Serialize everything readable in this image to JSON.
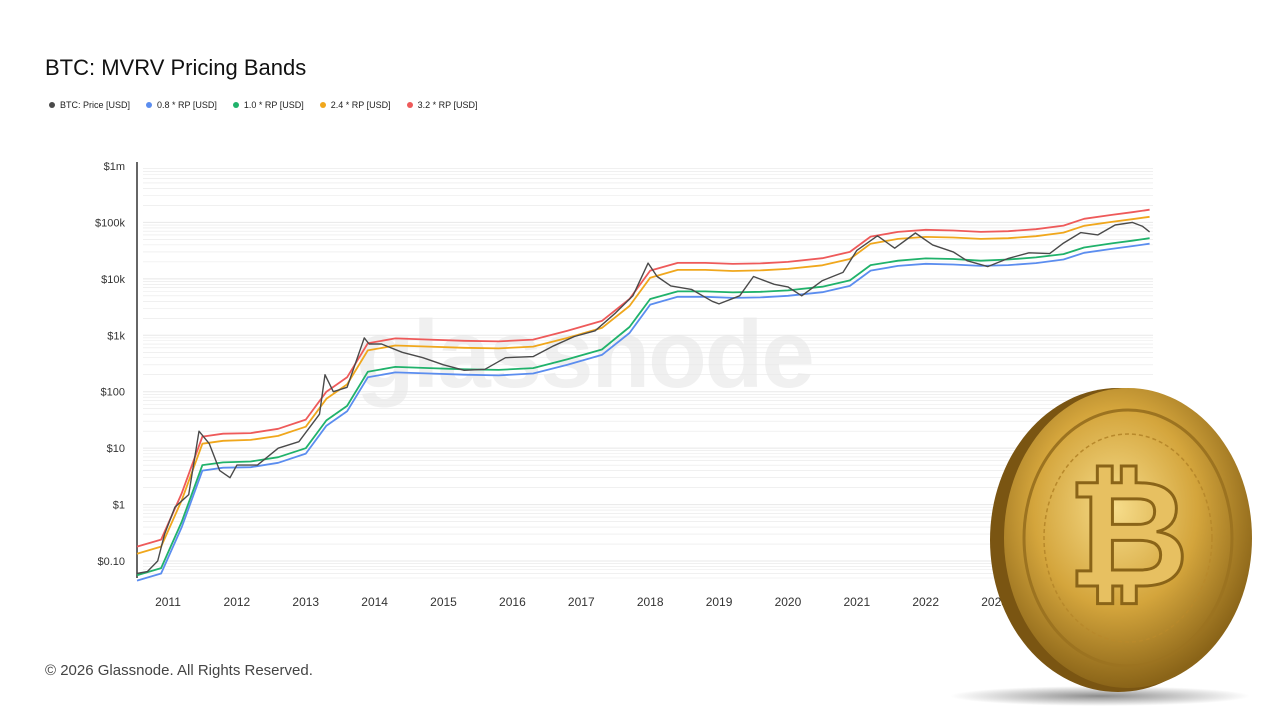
{
  "watermark": "glassnode",
  "footer": "© 2026 Glassnode. All Rights Reserved.",
  "colors": {
    "price": "#4a4a4a",
    "rp08": "#5b8def",
    "rp10": "#20b26b",
    "rp24": "#f0a71c",
    "rp32": "#ee5a5a",
    "grid": "#e8e8e8"
  },
  "coin_image": {
    "icon": "bitcoin-coin-icon",
    "symbol": "₿"
  },
  "chart_data": {
    "type": "line",
    "title": "BTC: MVRV Pricing Bands",
    "yscale": "log",
    "ylim": [
      0.05,
      1000000
    ],
    "xlim": [
      2010.55,
      2025.3
    ],
    "y_ticks": [
      {
        "value": 0.1,
        "label": "$0.10"
      },
      {
        "value": 1,
        "label": "$1"
      },
      {
        "value": 10,
        "label": "$10"
      },
      {
        "value": 100,
        "label": "$100"
      },
      {
        "value": 1000,
        "label": "$1k"
      },
      {
        "value": 10000,
        "label": "$10k"
      },
      {
        "value": 100000,
        "label": "$100k"
      },
      {
        "value": 1000000,
        "label": "$1m"
      }
    ],
    "x_ticks": [
      "2011",
      "2012",
      "2013",
      "2014",
      "2015",
      "2016",
      "2017",
      "2018",
      "2019",
      "2020",
      "2021",
      "2022",
      "2023"
    ],
    "legend_position": "top-left",
    "grid": true,
    "series": [
      {
        "name": "BTC: Price [USD]",
        "color_key": "price",
        "x": [
          2010.55,
          2010.7,
          2010.85,
          2010.95,
          2011.1,
          2011.3,
          2011.45,
          2011.6,
          2011.75,
          2011.9,
          2012.0,
          2012.3,
          2012.6,
          2012.9,
          2013.2,
          2013.28,
          2013.4,
          2013.6,
          2013.85,
          2013.92,
          2014.1,
          2014.4,
          2014.7,
          2015.0,
          2015.3,
          2015.6,
          2015.9,
          2016.3,
          2016.6,
          2016.9,
          2017.2,
          2017.5,
          2017.75,
          2017.97,
          2018.1,
          2018.3,
          2018.6,
          2018.9,
          2019.0,
          2019.3,
          2019.5,
          2019.8,
          2020.0,
          2020.2,
          2020.5,
          2020.8,
          2021.0,
          2021.3,
          2021.55,
          2021.85,
          2022.1,
          2022.4,
          2022.6,
          2022.9,
          2023.2,
          2023.5,
          2023.8,
          2024.0,
          2024.25,
          2024.5,
          2024.75,
          2025.0,
          2025.15,
          2025.25
        ],
        "y": [
          0.06,
          0.065,
          0.1,
          0.3,
          0.9,
          1.5,
          20,
          12,
          4,
          3,
          5,
          5,
          10,
          13,
          40,
          200,
          100,
          120,
          900,
          700,
          700,
          500,
          400,
          300,
          240,
          250,
          400,
          420,
          650,
          950,
          1200,
          2500,
          5000,
          19000,
          11000,
          7500,
          6500,
          4000,
          3600,
          5000,
          11000,
          8000,
          7200,
          5000,
          9300,
          13000,
          32000,
          58000,
          35000,
          65000,
          40000,
          30000,
          21000,
          16500,
          23000,
          29000,
          28000,
          43000,
          66000,
          60000,
          90000,
          100000,
          85000,
          68000
        ]
      },
      {
        "name": "0.8 * RP [USD]",
        "color_key": "rp08",
        "x": [
          2010.55,
          2010.9,
          2011.2,
          2011.5,
          2011.8,
          2012.2,
          2012.6,
          2013.0,
          2013.3,
          2013.6,
          2013.9,
          2014.3,
          2014.8,
          2015.3,
          2015.8,
          2016.3,
          2016.8,
          2017.3,
          2017.7,
          2018.0,
          2018.4,
          2018.8,
          2019.2,
          2019.6,
          2020.0,
          2020.5,
          2020.9,
          2021.2,
          2021.6,
          2022.0,
          2022.4,
          2022.8,
          2023.2,
          2023.6,
          2024.0,
          2024.3,
          2024.7,
          2025.0,
          2025.25
        ],
        "y": [
          0.045,
          0.06,
          0.4,
          4.0,
          4.5,
          4.6,
          5.5,
          8,
          25,
          45,
          180,
          220,
          210,
          200,
          195,
          210,
          300,
          450,
          1100,
          3500,
          4800,
          4800,
          4600,
          4700,
          5000,
          5800,
          7500,
          14000,
          17000,
          18500,
          18000,
          17000,
          17500,
          19000,
          22000,
          29000,
          34000,
          38000,
          42000
        ]
      },
      {
        "name": "1.0 * RP [USD]",
        "color_key": "rp10",
        "x": [
          2010.55,
          2010.9,
          2011.2,
          2011.5,
          2011.8,
          2012.2,
          2012.6,
          2013.0,
          2013.3,
          2013.6,
          2013.9,
          2014.3,
          2014.8,
          2015.3,
          2015.8,
          2016.3,
          2016.8,
          2017.3,
          2017.7,
          2018.0,
          2018.4,
          2018.8,
          2019.2,
          2019.6,
          2020.0,
          2020.5,
          2020.9,
          2021.2,
          2021.6,
          2022.0,
          2022.4,
          2022.8,
          2023.2,
          2023.6,
          2024.0,
          2024.3,
          2024.7,
          2025.0,
          2025.25
        ],
        "y": [
          0.056,
          0.075,
          0.5,
          5.0,
          5.6,
          5.8,
          6.9,
          10,
          31,
          56,
          225,
          275,
          262,
          250,
          244,
          262,
          375,
          560,
          1400,
          4400,
          6000,
          6000,
          5750,
          5900,
          6250,
          7250,
          9400,
          17500,
          21000,
          23000,
          22500,
          21000,
          22000,
          24000,
          27500,
          36000,
          42500,
          47500,
          52500
        ]
      },
      {
        "name": "2.4 * RP [USD]",
        "color_key": "rp24",
        "x": [
          2010.55,
          2010.9,
          2011.2,
          2011.5,
          2011.8,
          2012.2,
          2012.6,
          2013.0,
          2013.3,
          2013.6,
          2013.9,
          2014.3,
          2014.8,
          2015.3,
          2015.8,
          2016.3,
          2016.8,
          2017.3,
          2017.7,
          2018.0,
          2018.4,
          2018.8,
          2019.2,
          2019.6,
          2020.0,
          2020.5,
          2020.9,
          2021.2,
          2021.6,
          2022.0,
          2022.4,
          2022.8,
          2023.2,
          2023.6,
          2024.0,
          2024.3,
          2024.7,
          2025.0,
          2025.25
        ],
        "y": [
          0.135,
          0.18,
          1.2,
          12,
          13.5,
          14,
          16.5,
          24,
          75,
          135,
          540,
          660,
          630,
          600,
          585,
          630,
          900,
          1350,
          3300,
          10500,
          14400,
          14400,
          13800,
          14100,
          15000,
          17400,
          22500,
          42000,
          51000,
          55500,
          54000,
          51000,
          52500,
          57000,
          66000,
          87000,
          102000,
          114000,
          126000
        ]
      },
      {
        "name": "3.2 * RP [USD]",
        "color_key": "rp32",
        "x": [
          2010.55,
          2010.9,
          2011.2,
          2011.5,
          2011.8,
          2012.2,
          2012.6,
          2013.0,
          2013.3,
          2013.6,
          2013.9,
          2014.3,
          2014.8,
          2015.3,
          2015.8,
          2016.3,
          2016.8,
          2017.3,
          2017.7,
          2018.0,
          2018.4,
          2018.8,
          2019.2,
          2019.6,
          2020.0,
          2020.5,
          2020.9,
          2021.2,
          2021.6,
          2022.0,
          2022.4,
          2022.8,
          2023.2,
          2023.6,
          2024.0,
          2024.3,
          2024.7,
          2025.0,
          2025.25
        ],
        "y": [
          0.18,
          0.24,
          1.6,
          16,
          18,
          18.5,
          22,
          32,
          100,
          180,
          720,
          880,
          840,
          800,
          780,
          840,
          1200,
          1800,
          4400,
          14000,
          19200,
          19200,
          18400,
          18800,
          20000,
          23200,
          30000,
          56000,
          68000,
          74000,
          72000,
          68000,
          70000,
          76000,
          88000,
          116000,
          136000,
          152000,
          168000
        ]
      }
    ]
  }
}
